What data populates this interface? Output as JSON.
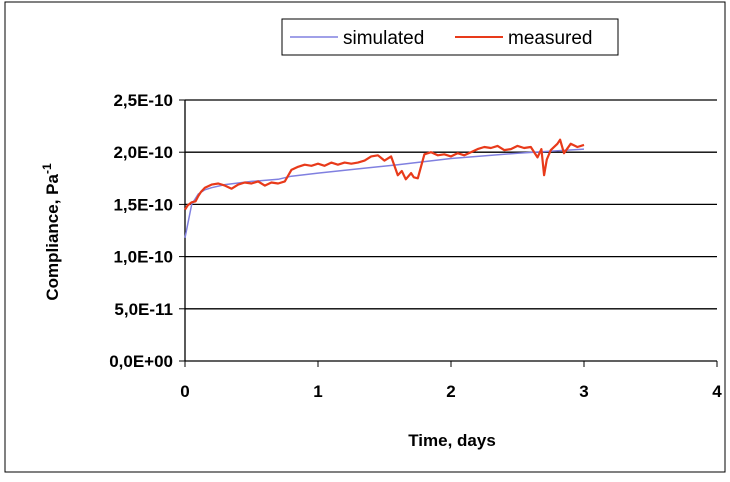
{
  "chart_data": {
    "type": "line",
    "title": "",
    "xlabel": "Time, days",
    "ylabel": "Compliance, Pa",
    "ylabel_superscript": "-1",
    "xlim": [
      0,
      4
    ],
    "ylim": [
      0,
      2.5e-10
    ],
    "x_ticks": [
      0,
      1,
      2,
      3,
      4
    ],
    "x_tick_labels": [
      "0",
      "1",
      "2",
      "3",
      "4"
    ],
    "y_ticks": [
      0,
      5e-11,
      1e-10,
      1.5e-10,
      2e-10,
      2.5e-10
    ],
    "y_tick_labels": [
      "0,0E+00",
      "5,0E-11",
      "1,0E-10",
      "1,5E-10",
      "2,0E-10",
      "2,5E-10"
    ],
    "grid": "horizontal",
    "legend_placement": "top",
    "series": [
      {
        "name": "simulated",
        "color": "#8080e0",
        "x": [
          0,
          0.05,
          0.1,
          0.15,
          0.2,
          0.3,
          0.5,
          0.7,
          0.8,
          1.0,
          1.3,
          1.6,
          2.0,
          2.5,
          3.0
        ],
        "y": [
          1.18e-10,
          1.5e-10,
          1.6e-10,
          1.64e-10,
          1.66e-10,
          1.69e-10,
          1.72e-10,
          1.74e-10,
          1.77e-10,
          1.8e-10,
          1.84e-10,
          1.88e-10,
          1.94e-10,
          1.99e-10,
          2.03e-10
        ]
      },
      {
        "name": "measured",
        "color": "#e83a1a",
        "x": [
          0,
          0.02,
          0.05,
          0.08,
          0.1,
          0.12,
          0.15,
          0.2,
          0.25,
          0.3,
          0.35,
          0.4,
          0.45,
          0.5,
          0.55,
          0.6,
          0.65,
          0.7,
          0.75,
          0.8,
          0.85,
          0.9,
          0.95,
          1.0,
          1.05,
          1.1,
          1.15,
          1.2,
          1.25,
          1.3,
          1.35,
          1.4,
          1.45,
          1.5,
          1.55,
          1.6,
          1.63,
          1.66,
          1.7,
          1.72,
          1.75,
          1.8,
          1.85,
          1.9,
          1.95,
          2.0,
          2.05,
          2.1,
          2.15,
          2.2,
          2.25,
          2.3,
          2.35,
          2.4,
          2.45,
          2.5,
          2.55,
          2.6,
          2.65,
          2.68,
          2.7,
          2.72,
          2.75,
          2.8,
          2.82,
          2.85,
          2.9,
          2.95,
          3.0
        ],
        "y": [
          1.45e-10,
          1.49e-10,
          1.52e-10,
          1.53e-10,
          1.58e-10,
          1.62e-10,
          1.66e-10,
          1.69e-10,
          1.7e-10,
          1.68e-10,
          1.65e-10,
          1.69e-10,
          1.71e-10,
          1.7e-10,
          1.72e-10,
          1.68e-10,
          1.71e-10,
          1.7e-10,
          1.72e-10,
          1.83e-10,
          1.86e-10,
          1.88e-10,
          1.87e-10,
          1.89e-10,
          1.87e-10,
          1.9e-10,
          1.88e-10,
          1.9e-10,
          1.89e-10,
          1.9e-10,
          1.92e-10,
          1.96e-10,
          1.97e-10,
          1.92e-10,
          1.96e-10,
          1.78e-10,
          1.82e-10,
          1.74e-10,
          1.8e-10,
          1.76e-10,
          1.75e-10,
          1.98e-10,
          2e-10,
          1.97e-10,
          1.98e-10,
          1.96e-10,
          1.99e-10,
          1.97e-10,
          2e-10,
          2.03e-10,
          2.05e-10,
          2.04e-10,
          2.06e-10,
          2.02e-10,
          2.03e-10,
          2.06e-10,
          2.04e-10,
          2.05e-10,
          1.95e-10,
          2.03e-10,
          1.78e-10,
          1.93e-10,
          2.02e-10,
          2.08e-10,
          2.12e-10,
          1.99e-10,
          2.08e-10,
          2.05e-10,
          2.07e-10
        ]
      }
    ]
  }
}
